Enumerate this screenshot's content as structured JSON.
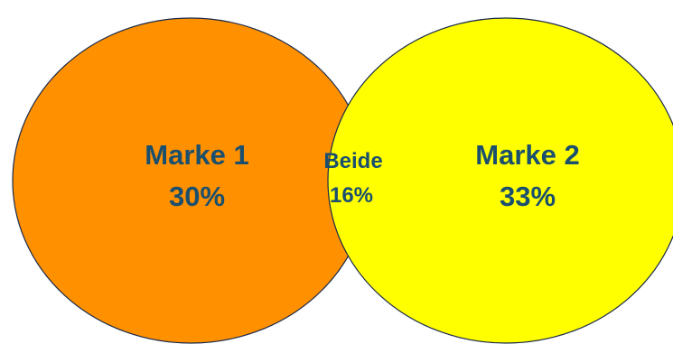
{
  "colors": {
    "left_circle": "#ff9000",
    "right_circle": "#ffff00",
    "outline": "#1a2a4a",
    "text": "#1a4f6e"
  },
  "venn": {
    "left": {
      "label": "Marke 1",
      "value": "30%"
    },
    "overlap": {
      "label": "Beide",
      "value": "16%"
    },
    "right": {
      "label": "Marke 2",
      "value": "33%"
    }
  }
}
